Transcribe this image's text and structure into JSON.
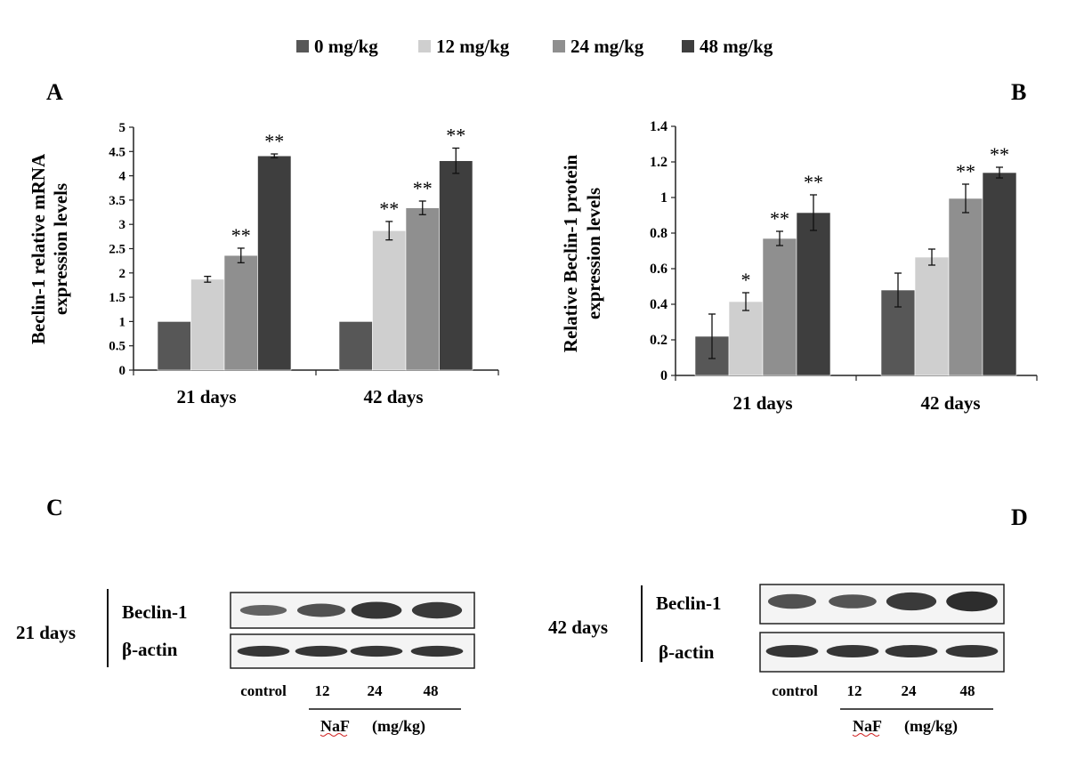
{
  "legend": [
    {
      "label": "0 mg/kg",
      "color": "#575757"
    },
    {
      "label": "12 mg/kg",
      "color": "#cfcfcf"
    },
    {
      "label": "24 mg/kg",
      "color": "#8f8f8f"
    },
    {
      "label": "48 mg/kg",
      "color": "#3e3e3e"
    }
  ],
  "panels": {
    "a": "A",
    "b": "B",
    "c": "C",
    "d": "D"
  },
  "chart_data": [
    {
      "type": "bar",
      "panel": "A",
      "ylabel_line1": "Beclin-1 relative mRNA",
      "ylabel_line2": "expression levels",
      "xlabel": "",
      "ylim": [
        0,
        5
      ],
      "yticks": [
        "0",
        "0.5",
        "1",
        "1.5",
        "2",
        "2.5",
        "3",
        "3.5",
        "4",
        "4.5",
        "5"
      ],
      "categories": [
        "21 days",
        "42 days"
      ],
      "series": [
        {
          "name": "0 mg/kg",
          "values": [
            1.0,
            1.0
          ],
          "errors": [
            0,
            0
          ],
          "sig": [
            "",
            ""
          ]
        },
        {
          "name": "12 mg/kg",
          "values": [
            1.87,
            2.87
          ],
          "errors": [
            0.06,
            0.19
          ],
          "sig": [
            "",
            "**"
          ]
        },
        {
          "name": "24 mg/kg",
          "values": [
            2.36,
            3.34
          ],
          "errors": [
            0.15,
            0.14
          ],
          "sig": [
            "**",
            "**"
          ]
        },
        {
          "name": "48 mg/kg",
          "values": [
            4.41,
            4.31
          ],
          "errors": [
            0.04,
            0.26
          ],
          "sig": [
            "**",
            "**"
          ]
        }
      ]
    },
    {
      "type": "bar",
      "panel": "B",
      "ylabel_line1": "Relative Beclin-1 protein",
      "ylabel_line2": "expression levels",
      "xlabel": "",
      "ylim": [
        0,
        1.4
      ],
      "yticks": [
        "0",
        "0.2",
        "0.4",
        "0.6",
        "0.8",
        "1",
        "1.2",
        "1.4"
      ],
      "categories": [
        "21 days",
        "42 days"
      ],
      "series": [
        {
          "name": "0 mg/kg",
          "values": [
            0.22,
            0.48
          ],
          "errors": [
            0.125,
            0.095
          ],
          "sig": [
            "",
            ""
          ]
        },
        {
          "name": "12 mg/kg",
          "values": [
            0.415,
            0.665
          ],
          "errors": [
            0.05,
            0.045
          ],
          "sig": [
            "*",
            ""
          ]
        },
        {
          "name": "24 mg/kg",
          "values": [
            0.77,
            0.995
          ],
          "errors": [
            0.04,
            0.08
          ],
          "sig": [
            "**",
            "**"
          ]
        },
        {
          "name": "48 mg/kg",
          "values": [
            0.915,
            1.14
          ],
          "errors": [
            0.1,
            0.03
          ],
          "sig": [
            "**",
            "**"
          ]
        }
      ]
    }
  ],
  "blots": {
    "c": {
      "time": "21 days",
      "row1": "Beclin-1",
      "row2": "β-actin",
      "lanes": [
        "control",
        "12",
        "24",
        "48"
      ],
      "treatment": "NaF",
      "unit": "(mg/kg)",
      "beclin_intensity": [
        0.35,
        0.55,
        0.85,
        0.8
      ]
    },
    "d": {
      "time": "42 days",
      "row1": "Beclin-1",
      "row2": "β-actin",
      "lanes": [
        "control",
        "12",
        "24",
        "48"
      ],
      "treatment": "NaF",
      "unit": "(mg/kg)",
      "beclin_intensity": [
        0.55,
        0.5,
        0.8,
        0.95
      ]
    }
  }
}
